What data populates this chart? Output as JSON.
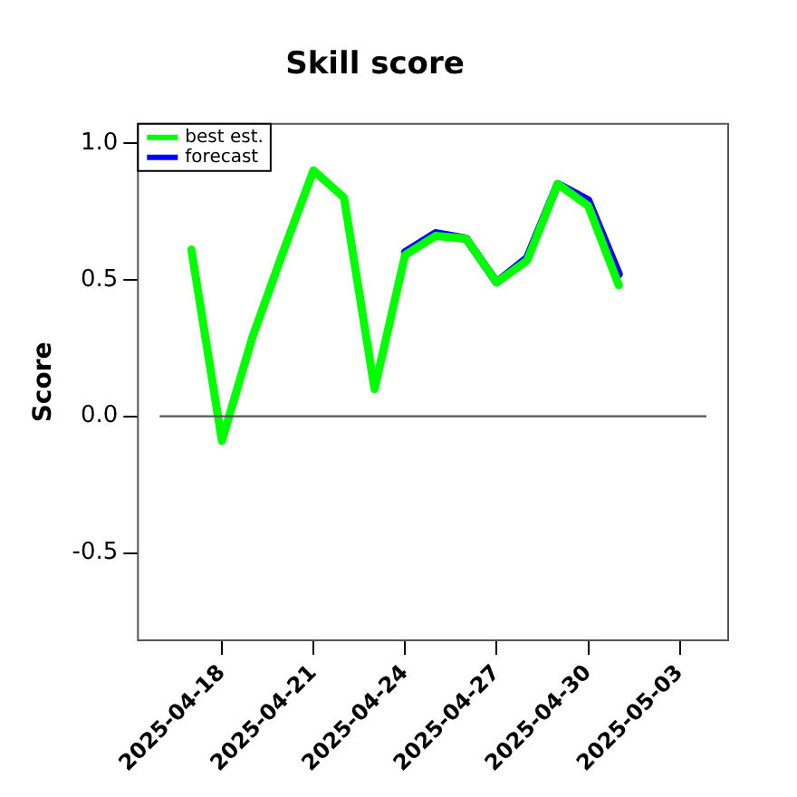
{
  "chart_data": {
    "type": "line",
    "title": "Skill score",
    "ylabel": "Score",
    "x": [
      "2025-04-17",
      "2025-04-18",
      "2025-04-19",
      "2025-04-20",
      "2025-04-21",
      "2025-04-22",
      "2025-04-23",
      "2025-04-24",
      "2025-04-25",
      "2025-04-26",
      "2025-04-27",
      "2025-04-28",
      "2025-04-29",
      "2025-04-30",
      "2025-05-01"
    ],
    "series": [
      {
        "name": "best est.",
        "color": "#00ff00",
        "values": [
          0.61,
          -0.09,
          0.29,
          0.6,
          0.9,
          0.8,
          0.1,
          0.59,
          0.66,
          0.65,
          0.49,
          0.57,
          0.85,
          0.77,
          0.48
        ]
      },
      {
        "name": "forecast",
        "color": "#0000ff",
        "x": [
          "2025-04-24",
          "2025-04-25",
          "2025-04-26",
          "2025-04-27",
          "2025-04-28",
          "2025-04-29",
          "2025-04-30",
          "2025-05-01"
        ],
        "values": [
          0.6,
          0.67,
          0.65,
          0.49,
          0.58,
          0.85,
          0.79,
          0.52
        ]
      }
    ],
    "xlim": [
      "2025-04-15T06:00",
      "2025-05-04T14:00"
    ],
    "xticks": [
      "2025-04-18",
      "2025-04-21",
      "2025-04-24",
      "2025-04-27",
      "2025-04-30",
      "2025-05-03"
    ],
    "ylim": [
      -0.82,
      1.07
    ],
    "yticks": [
      {
        "value": -0.5,
        "label": "-0.5"
      },
      {
        "value": 0,
        "label": "0.0"
      },
      {
        "value": 0.5,
        "label": "0.5"
      },
      {
        "value": 1,
        "label": "1.0"
      }
    ],
    "ref_lines": [
      {
        "axis": "y",
        "value": 0,
        "color": "#555555"
      }
    ],
    "grid": false,
    "legend": "top left",
    "line_style": "solid",
    "marker": "none"
  }
}
